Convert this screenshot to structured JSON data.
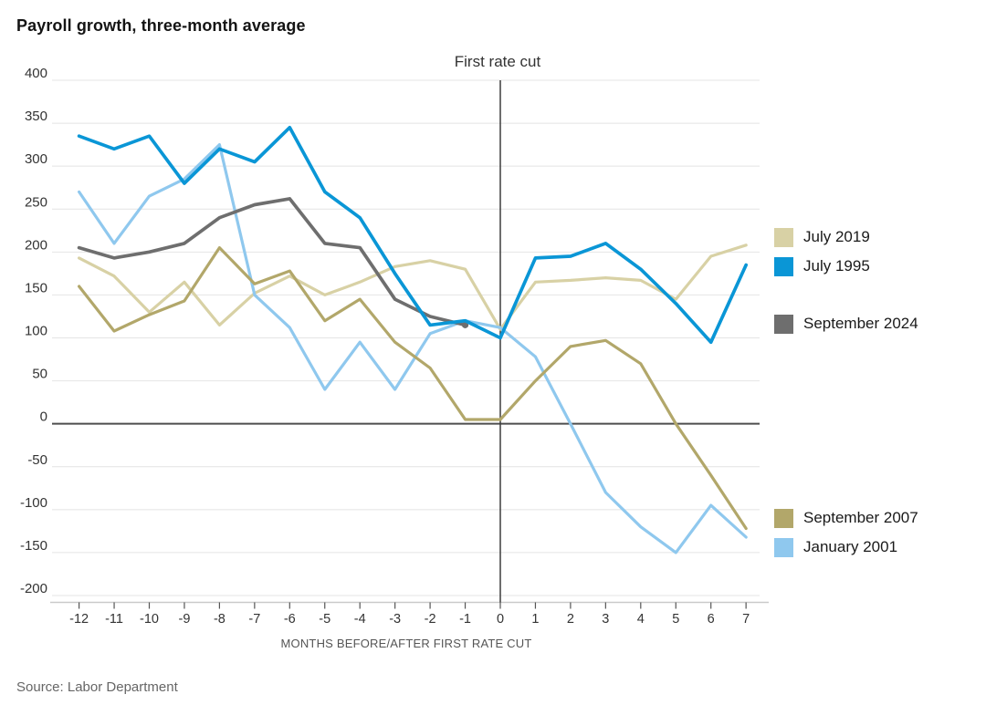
{
  "title": "Payroll growth, three-month average",
  "annotation_label": "First rate cut",
  "xaxis_label": "MONTHS BEFORE/AFTER FIRST RATE CUT",
  "source": "Source: Labor Department",
  "chart_data": {
    "type": "line",
    "x": [
      -12,
      -11,
      -10,
      -9,
      -8,
      -7,
      -6,
      -5,
      -4,
      -3,
      -2,
      -1,
      0,
      1,
      2,
      3,
      4,
      5,
      6,
      7
    ],
    "xlabel": "MONTHS BEFORE/AFTER FIRST RATE CUT",
    "ylabel": "",
    "ylim": [
      -200,
      400
    ],
    "ytick_step": 50,
    "grid": true,
    "zero_line": true,
    "annotation": {
      "label": "First rate cut",
      "x": 0
    },
    "legend_position": "right",
    "series": [
      {
        "name": "July 2019",
        "color": "#d8d1a5",
        "values": [
          193,
          172,
          130,
          165,
          115,
          152,
          172,
          150,
          165,
          183,
          190,
          180,
          110,
          165,
          167,
          170,
          167,
          145,
          195,
          208
        ]
      },
      {
        "name": "July 1995",
        "color": "#0a96d6",
        "values": [
          335,
          320,
          335,
          280,
          320,
          305,
          345,
          270,
          240,
          175,
          115,
          120,
          100,
          193,
          195,
          210,
          180,
          140,
          95,
          185
        ]
      },
      {
        "name": "September 2024",
        "color": "#6e6e6e",
        "values": [
          205,
          193,
          200,
          210,
          240,
          255,
          262,
          210,
          205,
          145,
          125,
          115
        ],
        "end_dot": true
      },
      {
        "name": "September 2007",
        "color": "#b2a76a",
        "values": [
          160,
          108,
          127,
          143,
          205,
          163,
          178,
          120,
          145,
          95,
          65,
          5,
          5,
          50,
          90,
          97,
          70,
          0,
          -60,
          -122
        ]
      },
      {
        "name": "January 2001",
        "color": "#8fc8ee",
        "values": [
          270,
          210,
          265,
          285,
          325,
          150,
          112,
          40,
          95,
          40,
          105,
          120,
          112,
          78,
          0,
          -80,
          -120,
          -150,
          -95,
          -132
        ]
      }
    ],
    "draw_order": [
      0,
      4,
      3,
      2,
      1
    ],
    "colors": {
      "grid": "#e4e4e4",
      "zero_line": "#4d4d4d",
      "event_line": "#3d3d3d",
      "axis_line": "#c9c9c9",
      "tick_text": "#333333"
    }
  }
}
